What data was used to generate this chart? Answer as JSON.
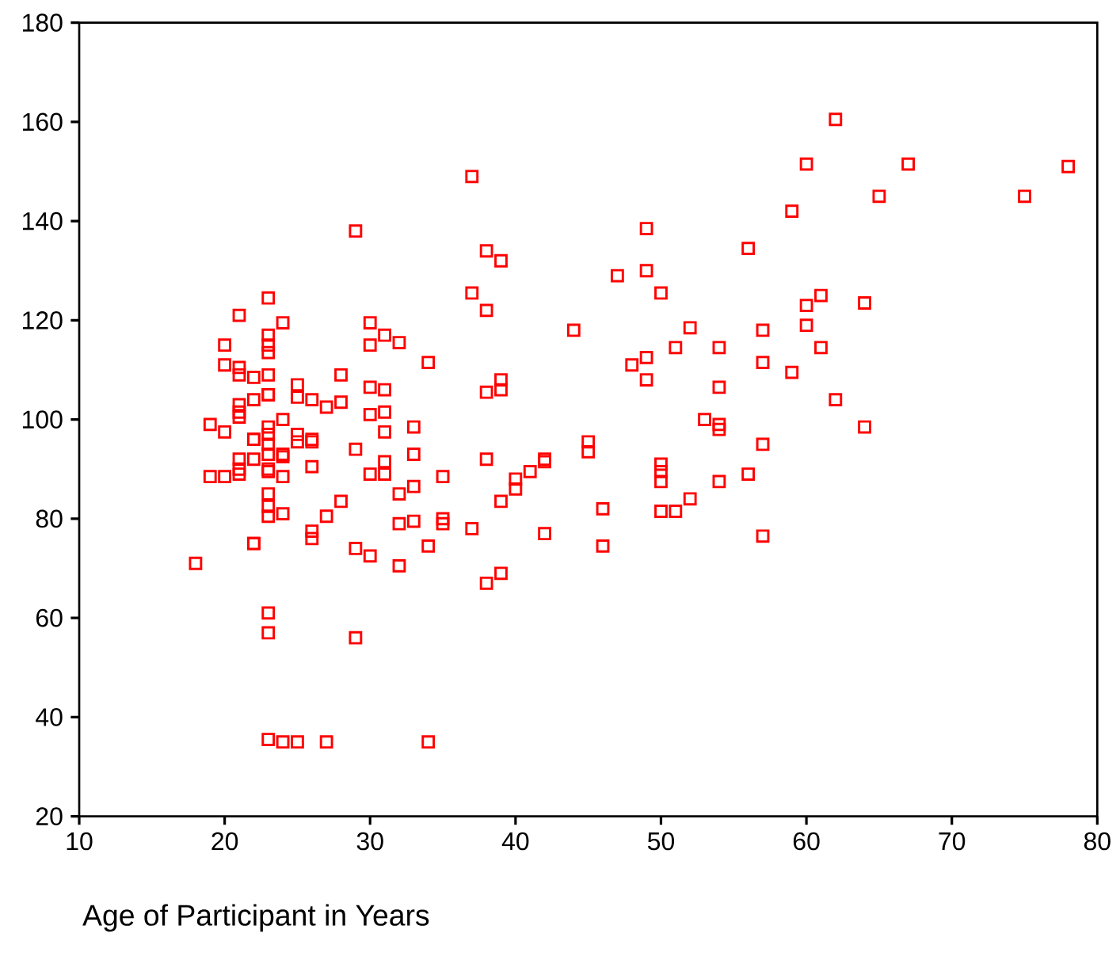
{
  "chart_data": {
    "type": "scatter",
    "xlabel": "Age of Participant in Years",
    "xlim": [
      10,
      80
    ],
    "xticks": [
      10,
      20,
      30,
      40,
      50,
      60,
      70,
      80
    ],
    "ylim": [
      20,
      180
    ],
    "yticks": [
      20,
      40,
      60,
      80,
      100,
      120,
      140,
      160,
      180
    ],
    "grid": false,
    "marker": "square",
    "series": [
      {
        "color": "#ff0000",
        "x": [
          18,
          19,
          19,
          20,
          20,
          20,
          20,
          21,
          21,
          21,
          21,
          21,
          21,
          21,
          21,
          21,
          22,
          22,
          22,
          22,
          22,
          22,
          22,
          23,
          23,
          23,
          23,
          23,
          23,
          23,
          23,
          23,
          23,
          23,
          23,
          23,
          23,
          23,
          23,
          23,
          23,
          23,
          24,
          24,
          24,
          24,
          24,
          24,
          24,
          25,
          25,
          25,
          25,
          25,
          26,
          26,
          26,
          26,
          26,
          26,
          27,
          27,
          27,
          28,
          28,
          28,
          29,
          29,
          29,
          29,
          30,
          30,
          30,
          30,
          30,
          30,
          31,
          31,
          31,
          31,
          31,
          31,
          32,
          32,
          32,
          32,
          33,
          33,
          33,
          33,
          34,
          34,
          34,
          35,
          35,
          35,
          37,
          37,
          37,
          38,
          38,
          38,
          38,
          38,
          39,
          39,
          39,
          39,
          39,
          40,
          40,
          41,
          42,
          42,
          42,
          44,
          45,
          45,
          46,
          46,
          47,
          48,
          49,
          49,
          49,
          49,
          50,
          50,
          50,
          50,
          50,
          51,
          51,
          52,
          52,
          53,
          54,
          54,
          54,
          54,
          54,
          56,
          56,
          57,
          57,
          57,
          57,
          59,
          59,
          60,
          60,
          60,
          61,
          61,
          62,
          62,
          64,
          64,
          65,
          67,
          75,
          78
        ],
        "values": [
          71,
          99,
          88.5,
          115,
          111,
          97.5,
          88.5,
          121,
          110.5,
          109,
          103,
          101.5,
          100.5,
          92,
          90,
          89,
          108.5,
          104,
          96,
          96,
          92,
          75,
          75,
          124.5,
          117,
          115,
          113.5,
          109,
          105,
          105,
          98.5,
          97,
          95,
          93,
          90,
          89.5,
          85,
          82.5,
          80.5,
          61,
          57,
          35.5,
          119.5,
          100,
          93,
          92.5,
          88.5,
          81,
          35,
          107,
          104.5,
          97,
          95.5,
          35,
          104,
          96,
          95.5,
          90.5,
          77.5,
          76,
          102.5,
          80.5,
          35,
          109,
          103.5,
          83.5,
          138,
          94,
          74,
          56,
          119.5,
          115,
          106.5,
          101,
          89,
          72.5,
          117,
          106,
          101.5,
          97.5,
          91.5,
          89,
          115.5,
          85,
          79,
          70.5,
          98.5,
          93,
          86.5,
          79.5,
          111.5,
          74.5,
          35,
          88.5,
          80,
          79,
          149,
          125.5,
          78,
          134,
          122,
          105.5,
          92,
          67,
          132,
          108,
          106,
          83.5,
          69,
          88,
          86,
          89.5,
          92,
          91.5,
          77,
          118,
          95.5,
          93.5,
          82,
          74.5,
          129,
          111,
          138.5,
          130,
          112.5,
          108,
          125.5,
          91,
          89.5,
          87.5,
          81.5,
          114.5,
          81.5,
          118.5,
          84,
          100,
          114.5,
          106.5,
          99,
          98,
          87.5,
          134.5,
          89,
          118,
          111.5,
          95,
          76.5,
          142,
          109.5,
          151.5,
          123,
          119,
          125,
          114.5,
          160.5,
          104,
          123.5,
          98.5,
          145,
          151.5,
          145,
          151
        ]
      }
    ]
  }
}
